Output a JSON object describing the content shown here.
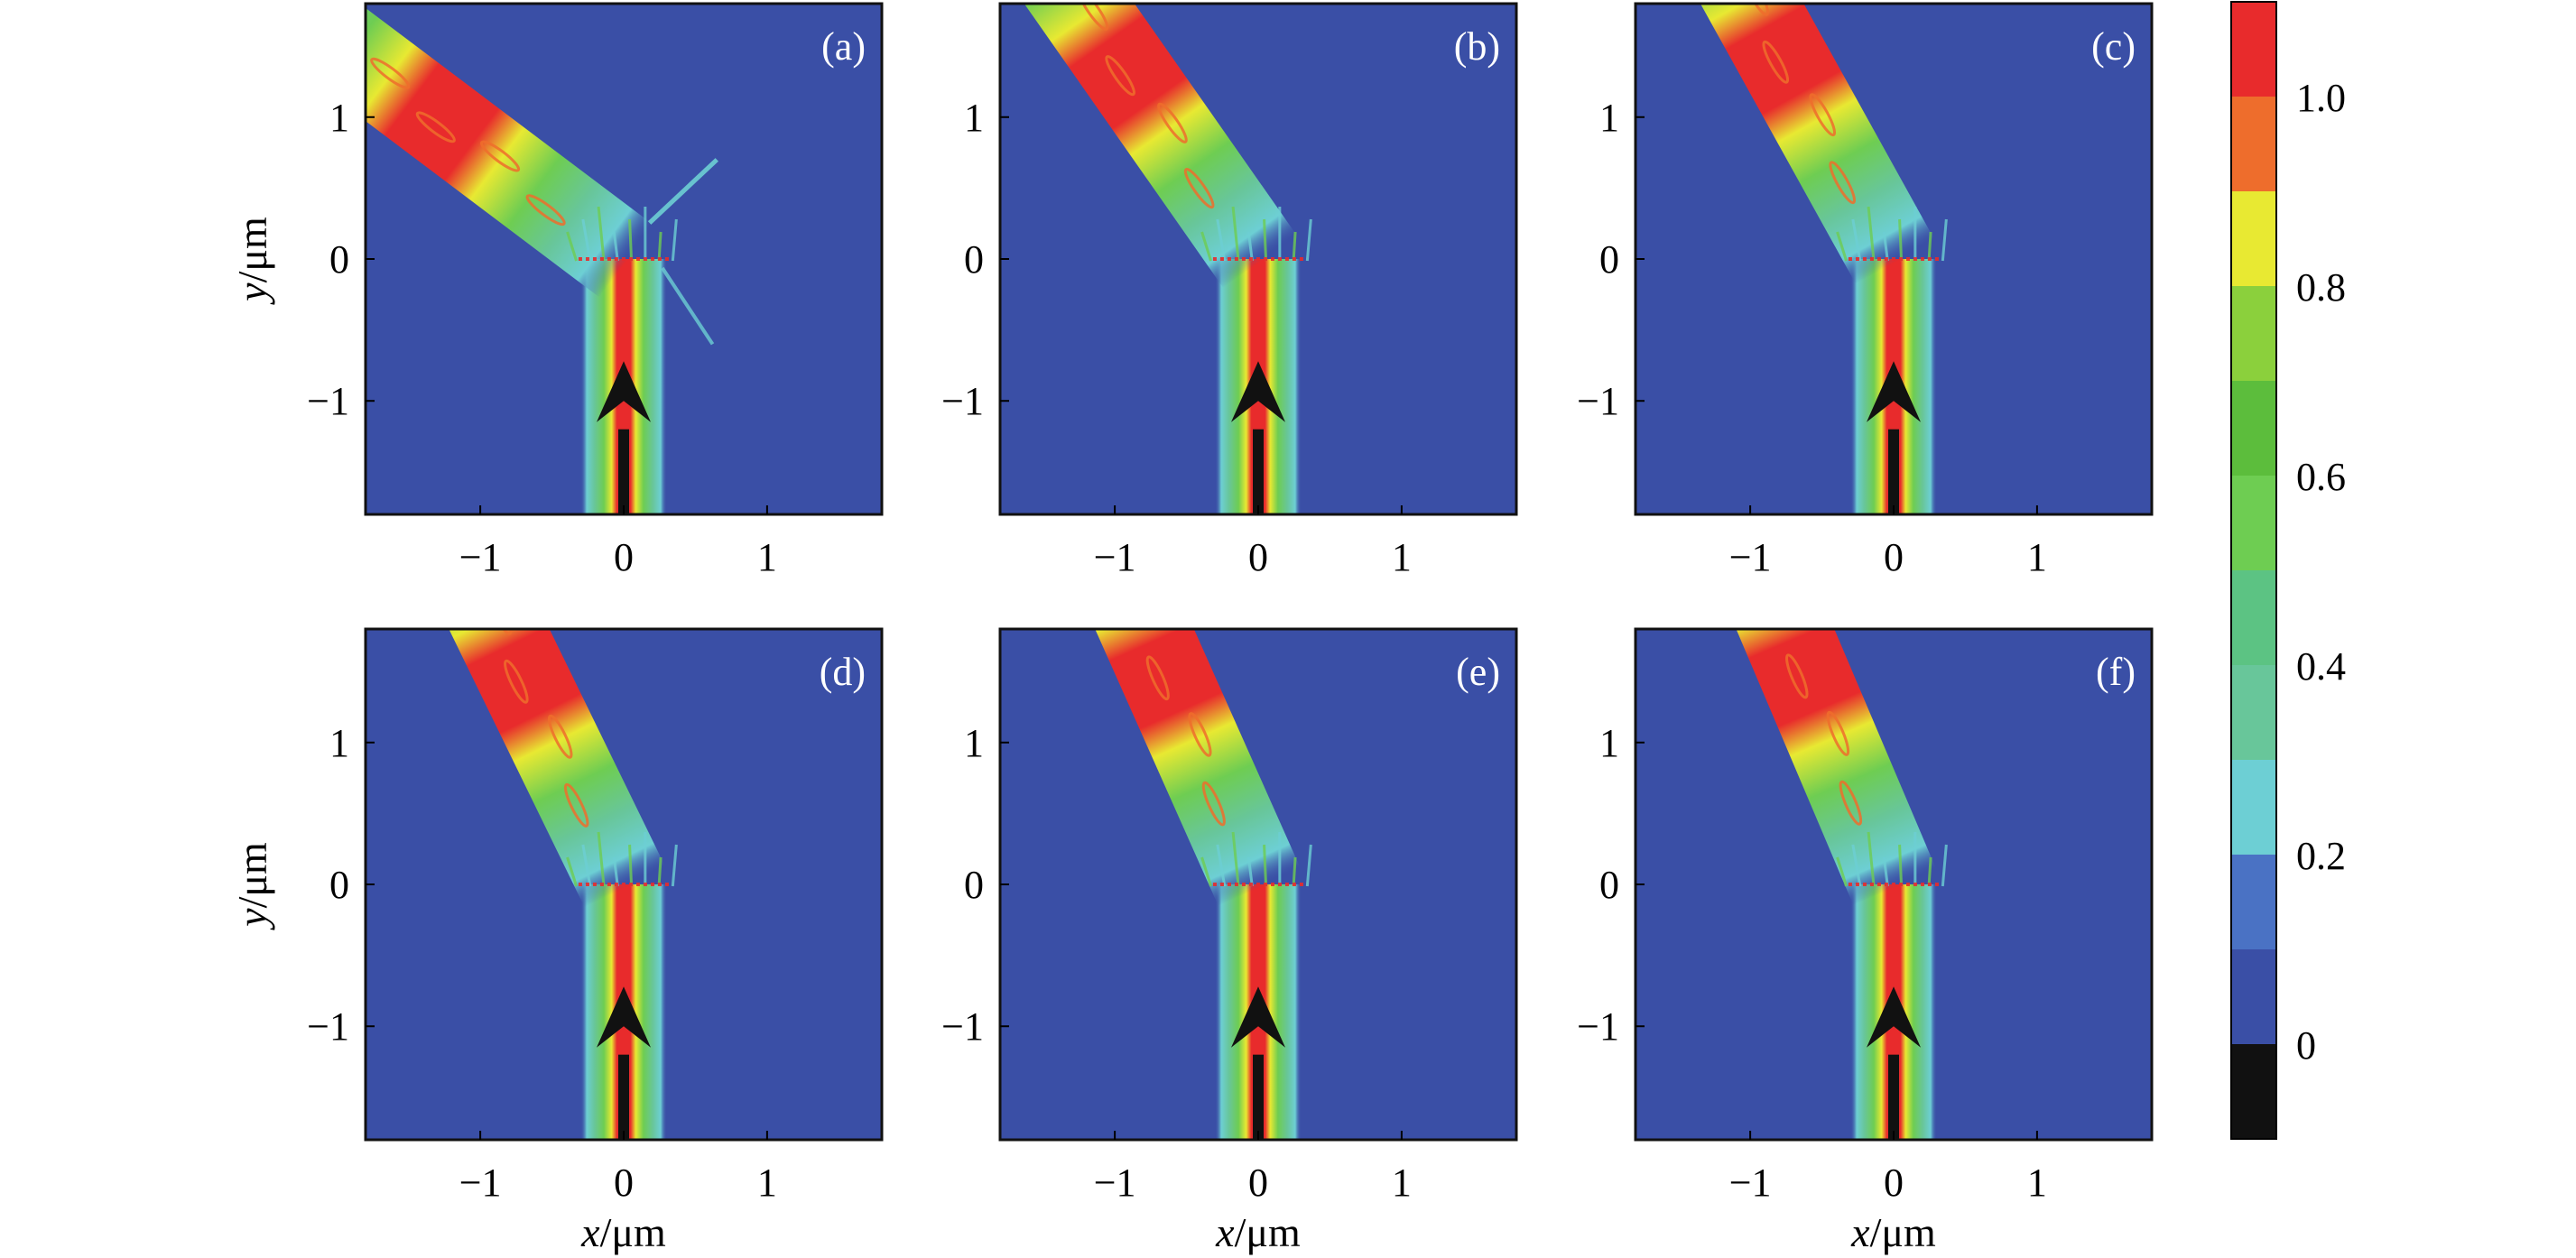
{
  "figure": {
    "panel_count": 6,
    "layout": "2 rows x 3 columns",
    "xlabel": "x/μm",
    "ylabel": "y/μm",
    "xlabel_var": "x",
    "ylabel_var": "y",
    "unit": "/μm"
  },
  "chart_data": [
    {
      "type": "heatmap",
      "panel_label": "(a)",
      "xlim": [
        -1.8,
        1.8
      ],
      "ylim": [
        -1.8,
        1.8
      ],
      "xticks": [
        -1,
        0,
        1
      ],
      "yticks": [
        -1,
        0,
        1
      ],
      "xlabel": "",
      "ylabel": "y/μm",
      "incident_beam_x": 0,
      "incident_beam_halfwidth": 0.3,
      "refracted_beam_angle_deg": 53,
      "arrow_direction": "up",
      "scattered_side_lobe": true
    },
    {
      "type": "heatmap",
      "panel_label": "(b)",
      "xlim": [
        -1.8,
        1.8
      ],
      "ylim": [
        -1.8,
        1.8
      ],
      "xticks": [
        -1,
        0,
        1
      ],
      "yticks": [
        -1,
        0,
        1
      ],
      "xlabel": "",
      "ylabel": "",
      "incident_beam_x": 0,
      "incident_beam_halfwidth": 0.3,
      "refracted_beam_angle_deg": 35,
      "arrow_direction": "up",
      "scattered_side_lobe": false
    },
    {
      "type": "heatmap",
      "panel_label": "(c)",
      "xlim": [
        -1.8,
        1.8
      ],
      "ylim": [
        -1.8,
        1.8
      ],
      "xticks": [
        -1,
        0,
        1
      ],
      "yticks": [
        -1,
        0,
        1
      ],
      "xlabel": "",
      "ylabel": "",
      "incident_beam_x": 0,
      "incident_beam_halfwidth": 0.3,
      "refracted_beam_angle_deg": 29,
      "arrow_direction": "up",
      "scattered_side_lobe": false
    },
    {
      "type": "heatmap",
      "panel_label": "(d)",
      "xlim": [
        -1.8,
        1.8
      ],
      "ylim": [
        -1.8,
        1.8
      ],
      "xticks": [
        -1,
        0,
        1
      ],
      "yticks": [
        -1,
        0,
        1
      ],
      "xlabel": "x/μm",
      "ylabel": "y/μm",
      "incident_beam_x": 0,
      "incident_beam_halfwidth": 0.3,
      "refracted_beam_angle_deg": 26,
      "arrow_direction": "up",
      "scattered_side_lobe": false
    },
    {
      "type": "heatmap",
      "panel_label": "(e)",
      "xlim": [
        -1.8,
        1.8
      ],
      "ylim": [
        -1.8,
        1.8
      ],
      "xticks": [
        -1,
        0,
        1
      ],
      "yticks": [
        -1,
        0,
        1
      ],
      "xlabel": "x/μm",
      "ylabel": "",
      "incident_beam_x": 0,
      "incident_beam_halfwidth": 0.3,
      "refracted_beam_angle_deg": 24,
      "arrow_direction": "up",
      "scattered_side_lobe": false
    },
    {
      "type": "heatmap",
      "panel_label": "(f)",
      "xlim": [
        -1.8,
        1.8
      ],
      "ylim": [
        -1.8,
        1.8
      ],
      "xticks": [
        -1,
        0,
        1
      ],
      "yticks": [
        -1,
        0,
        1
      ],
      "xlabel": "x/μm",
      "ylabel": "",
      "incident_beam_x": 0,
      "incident_beam_halfwidth": 0.3,
      "refracted_beam_angle_deg": 23,
      "arrow_direction": "up",
      "scattered_side_lobe": false
    }
  ],
  "colorbar": {
    "range": [
      -0.1,
      1.1
    ],
    "levels": [
      -0.1,
      0.0,
      0.1,
      0.2,
      0.3,
      0.4,
      0.5,
      0.6,
      0.7,
      0.8,
      0.9,
      1.0,
      1.1
    ],
    "colors": [
      "#111111",
      "#3a4fa6",
      "#4a72c4",
      "#6dcfd4",
      "#68c69a",
      "#5cc383",
      "#6ecd52",
      "#5cbd3c",
      "#8bd03c",
      "#e8e932",
      "#ee6d2c",
      "#e82b2c"
    ],
    "tick_values": [
      0,
      0.2,
      0.4,
      0.6,
      0.8,
      1.0
    ],
    "tick_labels": [
      "0",
      "0.2",
      "0.4",
      "0.6",
      "0.8",
      "1.0"
    ]
  },
  "colors": {
    "background_field": "#3a4fa6",
    "beam_core": "#e82b2c",
    "arrow": "#111111",
    "frame": "#111111"
  }
}
